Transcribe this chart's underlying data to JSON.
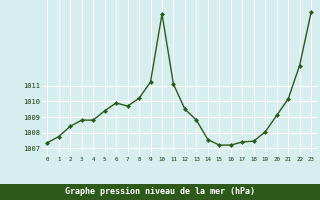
{
  "x": [
    0,
    1,
    2,
    3,
    4,
    5,
    6,
    7,
    8,
    9,
    10,
    11,
    12,
    13,
    14,
    15,
    16,
    17,
    18,
    19,
    20,
    21,
    22,
    23
  ],
  "y": [
    1007.35,
    1007.75,
    1008.4,
    1008.8,
    1008.8,
    1009.4,
    1009.9,
    1009.7,
    1010.2,
    1011.25,
    1015.6,
    1011.1,
    1009.5,
    1008.8,
    1007.55,
    1007.2,
    1007.2,
    1007.4,
    1007.45,
    1008.05,
    1009.1,
    1010.15,
    1012.3,
    1015.7
  ],
  "line_color": "#2d5a1b",
  "marker_color": "#2d5a1b",
  "bg_color": "#d6eeee",
  "grid_color": "#ffffff",
  "xlabel": "Graphe pression niveau de la mer (hPa)",
  "xlabel_color": "#1a3a0a",
  "tick_color": "#1a3a0a",
  "ylim": [
    1006.5,
    1016.5
  ],
  "xlim": [
    -0.5,
    23.5
  ],
  "yticks": [
    1007,
    1008,
    1009,
    1010,
    1011
  ],
  "xticks": [
    0,
    1,
    2,
    3,
    4,
    5,
    6,
    7,
    8,
    9,
    10,
    11,
    12,
    13,
    14,
    15,
    16,
    17,
    18,
    19,
    20,
    21,
    22,
    23
  ],
  "bottom_bar_color": "#2d5a1b",
  "bottom_bar_height": 0.08
}
